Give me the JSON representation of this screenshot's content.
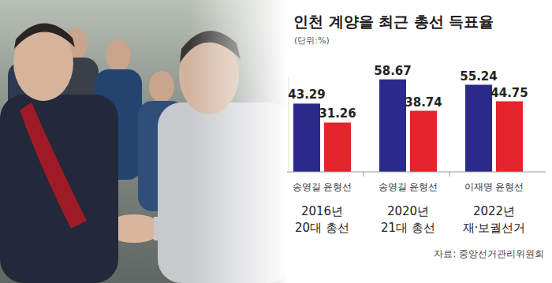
{
  "chart_data": {
    "type": "bar",
    "title": "인천 계양을 최근 총선 득표율",
    "subtitle": "(단위:%)",
    "categories": [
      "송영길",
      "윤형선",
      "송영길",
      "윤형선",
      "이재명",
      "윤형선"
    ],
    "values": [
      43.29,
      31.26,
      58.67,
      38.74,
      55.24,
      44.75
    ],
    "colors": [
      "#2b2a8a",
      "#e4252b",
      "#2b2a8a",
      "#e4252b",
      "#2b2a8a",
      "#e4252b"
    ],
    "groups": [
      {
        "label": "2016년",
        "sublabel": "20대 총선"
      },
      {
        "label": "2020년",
        "sublabel": "21대 총선"
      },
      {
        "label": "2022년",
        "sublabel": "재·보궐선거"
      }
    ],
    "ylim": [
      0,
      60
    ],
    "data_labels": true,
    "tick_labels": false,
    "grid": false,
    "source": "자료: 중앙선거관리위원회"
  }
}
